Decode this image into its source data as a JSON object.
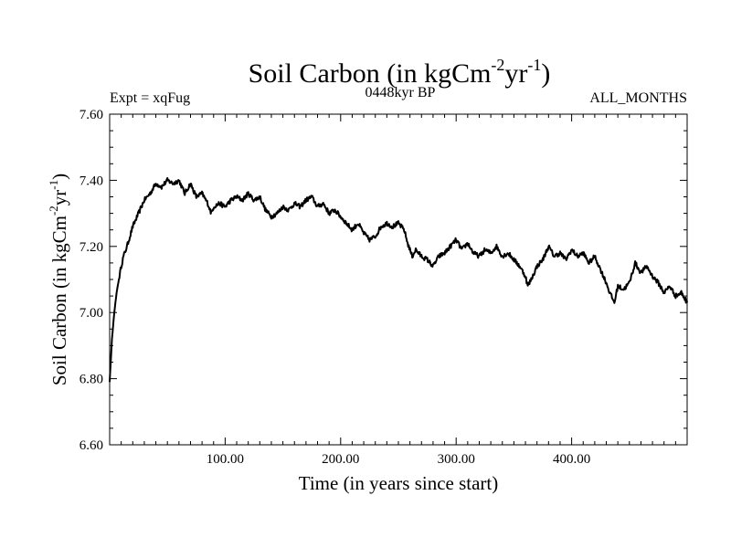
{
  "chart_data": {
    "type": "line",
    "title": {
      "main": "Soil Carbon (in kgCm",
      "sup1": "-2",
      "mid": "yr",
      "sup2": "-1",
      "end": ")"
    },
    "subtitle_left": "Expt = xqFug",
    "subtitle_center": "0448kyr BP",
    "subtitle_right": "ALL_MONTHS",
    "xlabel": "Time (in years since start)",
    "ylabel": {
      "main": "Soil Carbon (in kgCm",
      "sup1": "-2",
      "mid": "yr",
      "sup2": "-1",
      "end": ")"
    },
    "xlim": [
      0,
      500
    ],
    "ylim": [
      6.6,
      7.6
    ],
    "x_ticks": [
      100,
      200,
      300,
      400
    ],
    "x_tick_labels": [
      "100.00",
      "200.00",
      "300.00",
      "400.00"
    ],
    "y_ticks": [
      6.6,
      6.8,
      7.0,
      7.2,
      7.4,
      7.6
    ],
    "y_tick_labels": [
      "6.60",
      "6.80",
      "7.00",
      "7.20",
      "7.40",
      "7.60"
    ],
    "grid": false,
    "series": [
      {
        "name": "Soil Carbon",
        "color": "#000000",
        "x": [
          0,
          2,
          4,
          6,
          8,
          10,
          12,
          15,
          20,
          25,
          30,
          35,
          40,
          45,
          50,
          55,
          60,
          65,
          70,
          75,
          80,
          85,
          88,
          90,
          95,
          100,
          105,
          110,
          115,
          120,
          125,
          130,
          135,
          140,
          145,
          150,
          155,
          160,
          165,
          170,
          175,
          180,
          185,
          190,
          195,
          200,
          205,
          210,
          215,
          220,
          225,
          230,
          235,
          240,
          245,
          250,
          255,
          258,
          262,
          265,
          270,
          275,
          280,
          285,
          290,
          295,
          300,
          305,
          310,
          315,
          320,
          325,
          330,
          335,
          340,
          345,
          350,
          355,
          360,
          362,
          365,
          370,
          375,
          380,
          385,
          390,
          395,
          400,
          405,
          410,
          415,
          420,
          425,
          430,
          433,
          437,
          440,
          445,
          450,
          455,
          460,
          465,
          470,
          475,
          480,
          485,
          490,
          495,
          500
        ],
        "values": [
          6.79,
          6.92,
          7.0,
          7.06,
          7.1,
          7.14,
          7.17,
          7.2,
          7.26,
          7.3,
          7.34,
          7.36,
          7.39,
          7.38,
          7.4,
          7.39,
          7.4,
          7.36,
          7.39,
          7.35,
          7.36,
          7.33,
          7.3,
          7.32,
          7.33,
          7.32,
          7.34,
          7.35,
          7.34,
          7.36,
          7.34,
          7.35,
          7.31,
          7.29,
          7.3,
          7.32,
          7.31,
          7.33,
          7.32,
          7.34,
          7.35,
          7.32,
          7.33,
          7.3,
          7.31,
          7.29,
          7.27,
          7.25,
          7.27,
          7.24,
          7.22,
          7.23,
          7.26,
          7.27,
          7.26,
          7.27,
          7.25,
          7.21,
          7.17,
          7.19,
          7.17,
          7.16,
          7.14,
          7.17,
          7.18,
          7.2,
          7.22,
          7.19,
          7.21,
          7.18,
          7.17,
          7.19,
          7.18,
          7.2,
          7.17,
          7.18,
          7.16,
          7.14,
          7.11,
          7.08,
          7.1,
          7.14,
          7.16,
          7.2,
          7.17,
          7.18,
          7.16,
          7.19,
          7.17,
          7.18,
          7.15,
          7.17,
          7.13,
          7.09,
          7.06,
          7.03,
          7.08,
          7.07,
          7.09,
          7.15,
          7.12,
          7.14,
          7.11,
          7.09,
          7.06,
          7.08,
          7.05,
          7.06,
          7.03
        ]
      }
    ]
  }
}
